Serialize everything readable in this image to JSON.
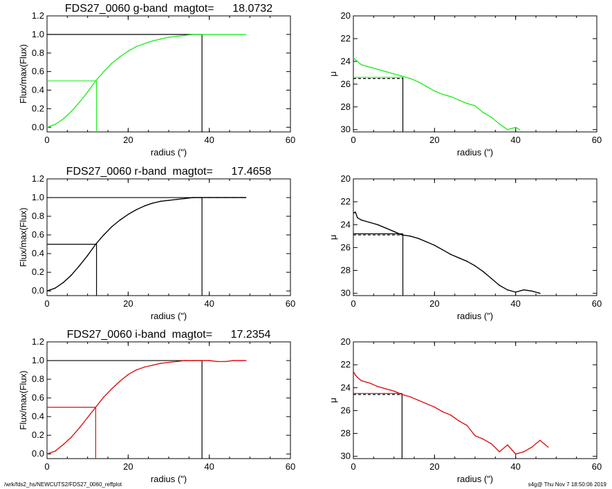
{
  "footer": {
    "path": "/wrk/fds2_hs/NEWCUTS2/FDS27_0060_reffplot",
    "stamp": "s4g@  Thu Nov  7 18:50:06 2019"
  },
  "rows": [
    {
      "object": "FDS27_0060",
      "band": "g-band",
      "magtot_label": "magtot=",
      "magtot": "18.0732"
    },
    {
      "object": "FDS27_0060",
      "band": "r-band",
      "magtot_label": "magtot=",
      "magtot": "17.4658"
    },
    {
      "object": "FDS27_0060",
      "band": "i-band",
      "magtot_label": "magtot=",
      "magtot": "17.2354"
    }
  ],
  "chart_data": [
    {
      "type": "line",
      "panel": "growth-curve",
      "band": "g",
      "color": "#22ee22",
      "title": "FDS27_0060 g-band  magtot=      18.0732",
      "xlabel": "radius (\")",
      "ylabel": "Flux/max(Flux)",
      "xlim": [
        0,
        60
      ],
      "ylim": [
        -0.05,
        1.2
      ],
      "xticks": [
        "0",
        "20",
        "40",
        "60"
      ],
      "yticks": [
        "0.0",
        "0.2",
        "0.4",
        "0.6",
        "0.8",
        "1.0",
        "1.2"
      ],
      "x": [
        0,
        2,
        4,
        6,
        8,
        10,
        12,
        14,
        16,
        18,
        20,
        22,
        24,
        26,
        28,
        30,
        32,
        34,
        36,
        38,
        40,
        42,
        44,
        46,
        48,
        49
      ],
      "y": [
        0,
        0.03,
        0.09,
        0.17,
        0.27,
        0.38,
        0.5,
        0.6,
        0.69,
        0.76,
        0.82,
        0.87,
        0.9,
        0.93,
        0.95,
        0.97,
        0.98,
        0.99,
        1.0,
        1.0,
        1.0,
        1.0,
        1.0,
        1.0,
        1.0,
        1.0
      ],
      "reference_lines": {
        "r_half": 12.2,
        "half_level": 0.5,
        "r_total": 38.2,
        "total_level": 1.0
      }
    },
    {
      "type": "line",
      "panel": "surface-brightness",
      "band": "g",
      "color": "#22ee22",
      "xlabel": "radius (\")",
      "ylabel": "μ",
      "xlim": [
        0,
        60
      ],
      "ylim": [
        30.2,
        20
      ],
      "y_inverted": true,
      "xticks": [
        "0",
        "20",
        "40",
        "60"
      ],
      "yticks": [
        "20",
        "22",
        "24",
        "26",
        "28",
        "30"
      ],
      "x": [
        0,
        1,
        2,
        4,
        6,
        8,
        10,
        12,
        14,
        16,
        18,
        20,
        22,
        24,
        26,
        28,
        30,
        32,
        34,
        36,
        38,
        40,
        41
      ],
      "y": [
        23.7,
        24.0,
        24.3,
        24.5,
        24.7,
        24.9,
        25.1,
        25.3,
        25.5,
        25.8,
        26.2,
        26.6,
        26.9,
        27.1,
        27.4,
        27.7,
        27.9,
        28.5,
        28.9,
        29.5,
        30.0,
        29.8,
        30.0
      ],
      "reference_lines": {
        "mu_eff": 25.4,
        "mu_eff_mean": 25.5,
        "r_half": 12.2
      }
    },
    {
      "type": "line",
      "panel": "growth-curve",
      "band": "r",
      "color": "#000000",
      "title": "FDS27_0060 r-band  magtot=      17.4658",
      "xlabel": "radius (\")",
      "ylabel": "Flux/max(Flux)",
      "xlim": [
        0,
        60
      ],
      "ylim": [
        -0.05,
        1.2
      ],
      "xticks": [
        "0",
        "20",
        "40",
        "60"
      ],
      "yticks": [
        "0.0",
        "0.2",
        "0.4",
        "0.6",
        "0.8",
        "1.0",
        "1.2"
      ],
      "x": [
        0,
        2,
        4,
        6,
        8,
        10,
        12,
        14,
        16,
        18,
        20,
        22,
        24,
        26,
        28,
        30,
        32,
        34,
        36,
        38,
        40,
        42,
        44,
        46,
        48,
        49
      ],
      "y": [
        0,
        0.03,
        0.09,
        0.17,
        0.27,
        0.38,
        0.5,
        0.6,
        0.69,
        0.76,
        0.82,
        0.87,
        0.91,
        0.94,
        0.96,
        0.97,
        0.98,
        0.99,
        1.0,
        1.0,
        1.0,
        1.0,
        1.0,
        1.0,
        1.0,
        1.0
      ],
      "reference_lines": {
        "r_half": 12.2,
        "half_level": 0.5,
        "r_total": 38.2,
        "total_level": 1.0
      }
    },
    {
      "type": "line",
      "panel": "surface-brightness",
      "band": "r",
      "color": "#000000",
      "xlabel": "radius (\")",
      "ylabel": "μ",
      "xlim": [
        0,
        60
      ],
      "ylim": [
        30.2,
        20
      ],
      "y_inverted": true,
      "xticks": [
        "0",
        "20",
        "40",
        "60"
      ],
      "yticks": [
        "20",
        "22",
        "24",
        "26",
        "28",
        "30"
      ],
      "x": [
        0,
        0.5,
        1,
        2,
        4,
        6,
        8,
        10,
        12,
        14,
        16,
        18,
        20,
        22,
        24,
        26,
        28,
        30,
        32,
        34,
        36,
        38,
        40,
        42,
        44,
        46
      ],
      "y": [
        23.0,
        22.9,
        23.4,
        23.6,
        23.8,
        24.0,
        24.3,
        24.6,
        24.9,
        25.0,
        25.2,
        25.5,
        25.8,
        26.2,
        26.6,
        26.9,
        27.2,
        27.6,
        28.1,
        28.7,
        29.3,
        29.7,
        29.9,
        29.7,
        29.8,
        30.0
      ],
      "reference_lines": {
        "mu_eff": 24.8,
        "mu_eff_mean": 24.9,
        "r_half": 12.2
      }
    },
    {
      "type": "line",
      "panel": "growth-curve",
      "band": "i",
      "color": "#dd1111",
      "title": "FDS27_0060 i-band  magtot=      17.2354",
      "xlabel": "radius (\")",
      "ylabel": "Flux/max(Flux)",
      "xlim": [
        0,
        60
      ],
      "ylim": [
        -0.05,
        1.2
      ],
      "xticks": [
        "0",
        "20",
        "40",
        "60"
      ],
      "yticks": [
        "0.0",
        "0.2",
        "0.4",
        "0.6",
        "0.8",
        "1.0",
        "1.2"
      ],
      "x": [
        0,
        2,
        4,
        6,
        8,
        10,
        12,
        14,
        16,
        18,
        20,
        22,
        24,
        26,
        28,
        30,
        32,
        34,
        36,
        38,
        40,
        42,
        44,
        46,
        48,
        49
      ],
      "y": [
        0,
        0.03,
        0.1,
        0.18,
        0.28,
        0.39,
        0.5,
        0.61,
        0.7,
        0.78,
        0.85,
        0.9,
        0.93,
        0.95,
        0.97,
        0.98,
        0.99,
        1.0,
        1.0,
        1.0,
        1.0,
        0.99,
        0.99,
        1.0,
        1.0,
        1.0
      ],
      "reference_lines": {
        "r_half": 12.0,
        "half_level": 0.5,
        "r_total": 38.2,
        "total_level": 1.0
      }
    },
    {
      "type": "line",
      "panel": "surface-brightness",
      "band": "i",
      "color": "#dd1111",
      "xlabel": "radius (\")",
      "ylabel": "μ",
      "xlim": [
        0,
        60
      ],
      "ylim": [
        30.2,
        20
      ],
      "y_inverted": true,
      "xticks": [
        "0",
        "20",
        "40",
        "60"
      ],
      "yticks": [
        "20",
        "22",
        "24",
        "26",
        "28",
        "30"
      ],
      "x": [
        0,
        0.5,
        1,
        2,
        4,
        6,
        8,
        10,
        12,
        14,
        16,
        18,
        20,
        22,
        24,
        26,
        28,
        30,
        32,
        34,
        36,
        38,
        40,
        42,
        44,
        46,
        48
      ],
      "y": [
        22.6,
        22.9,
        23.1,
        23.4,
        23.6,
        23.9,
        24.1,
        24.3,
        24.6,
        24.8,
        25.1,
        25.4,
        25.7,
        26.1,
        26.4,
        26.9,
        27.3,
        28.2,
        28.5,
        28.9,
        29.6,
        29.0,
        29.8,
        29.6,
        29.2,
        28.6,
        29.2
      ],
      "reference_lines": {
        "mu_eff": 24.5,
        "mu_eff_mean": 24.6,
        "r_half": 12.0
      }
    }
  ]
}
